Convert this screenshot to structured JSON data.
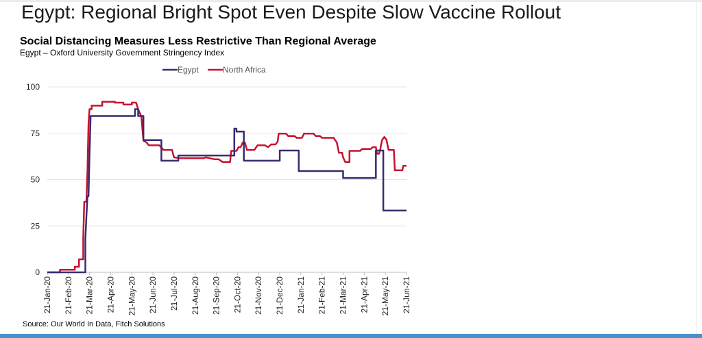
{
  "page": {
    "title": "Egypt: Regional Bright Spot Even Despite Slow Vaccine Rollout"
  },
  "chart_data": {
    "type": "line",
    "title": "Social Distancing Measures Less Restrictive Than Regional Average",
    "subtitle": "Egypt – Oxford University Government Stringency Index",
    "source": "Source: Our World In Data, Fitch Solutions",
    "xlabel": "",
    "ylabel": "",
    "ylim": [
      0,
      100
    ],
    "yticks": [
      0,
      25,
      50,
      75,
      100
    ],
    "grid": true,
    "legend_position": "top-center",
    "x_range": [
      0,
      17
    ],
    "x_ticks": [
      {
        "x": 0,
        "label": "21-Jan-20"
      },
      {
        "x": 1,
        "label": "21-Feb-20"
      },
      {
        "x": 2,
        "label": "21-Mar-20"
      },
      {
        "x": 3,
        "label": "21-Apr-20"
      },
      {
        "x": 4,
        "label": "21-May-20"
      },
      {
        "x": 5,
        "label": "21-Jun-20"
      },
      {
        "x": 6,
        "label": "21-Jul-20"
      },
      {
        "x": 7,
        "label": "21-Aug-20"
      },
      {
        "x": 8,
        "label": "21-Sep-20"
      },
      {
        "x": 9,
        "label": "21-Oct-20"
      },
      {
        "x": 10,
        "label": "21-Nov-20"
      },
      {
        "x": 11,
        "label": "21-Dec-20"
      },
      {
        "x": 12,
        "label": "21-Jan-21"
      },
      {
        "x": 13,
        "label": "21-Feb-21"
      },
      {
        "x": 14,
        "label": "21-Mar-21"
      },
      {
        "x": 15,
        "label": "21-Apr-21"
      },
      {
        "x": 16,
        "label": "21-May-21"
      },
      {
        "x": 17,
        "label": "21-Jun-21"
      }
    ],
    "series": [
      {
        "name": "Egypt",
        "color": "#3b2a6e",
        "points": [
          [
            0,
            0
          ],
          [
            1.8,
            0
          ],
          [
            1.8,
            18
          ],
          [
            1.85,
            30
          ],
          [
            1.9,
            41
          ],
          [
            1.95,
            41
          ],
          [
            2.0,
            64
          ],
          [
            2.05,
            84.3
          ],
          [
            4.15,
            84.3
          ],
          [
            4.15,
            88
          ],
          [
            4.3,
            88
          ],
          [
            4.3,
            84.3
          ],
          [
            4.55,
            84.3
          ],
          [
            4.55,
            71.3
          ],
          [
            5.4,
            71.3
          ],
          [
            5.4,
            60.2
          ],
          [
            6.2,
            60.2
          ],
          [
            6.2,
            63
          ],
          [
            8.85,
            63
          ],
          [
            8.85,
            77.5
          ],
          [
            8.95,
            77.5
          ],
          [
            8.95,
            75.9
          ],
          [
            9.3,
            75.9
          ],
          [
            9.3,
            60.2
          ],
          [
            11.0,
            60.2
          ],
          [
            11.0,
            65.7
          ],
          [
            11.9,
            65.7
          ],
          [
            11.9,
            54.6
          ],
          [
            14.0,
            54.6
          ],
          [
            14.0,
            50.9
          ],
          [
            15.55,
            50.9
          ],
          [
            15.55,
            65.7
          ],
          [
            15.9,
            65.7
          ],
          [
            15.9,
            33.3
          ],
          [
            17.0,
            33.3
          ]
        ]
      },
      {
        "name": "North Africa",
        "color": "#c8102e",
        "points": [
          [
            0,
            0
          ],
          [
            0.6,
            0
          ],
          [
            0.6,
            1.4
          ],
          [
            1.3,
            1.4
          ],
          [
            1.3,
            3
          ],
          [
            1.5,
            3
          ],
          [
            1.5,
            7
          ],
          [
            1.7,
            7
          ],
          [
            1.7,
            18
          ],
          [
            1.75,
            38
          ],
          [
            1.85,
            38
          ],
          [
            1.9,
            55
          ],
          [
            1.95,
            80
          ],
          [
            2.0,
            88
          ],
          [
            2.1,
            88
          ],
          [
            2.1,
            89.9
          ],
          [
            2.6,
            89.9
          ],
          [
            2.6,
            92
          ],
          [
            3.2,
            92
          ],
          [
            3.2,
            91.5
          ],
          [
            3.6,
            91.5
          ],
          [
            3.6,
            90.5
          ],
          [
            4.0,
            90.5
          ],
          [
            4.0,
            91.5
          ],
          [
            4.2,
            91.5
          ],
          [
            4.3,
            88
          ],
          [
            4.45,
            84
          ],
          [
            4.55,
            71
          ],
          [
            4.7,
            70
          ],
          [
            4.8,
            68.5
          ],
          [
            5.3,
            68.5
          ],
          [
            5.5,
            66
          ],
          [
            5.9,
            66
          ],
          [
            6.0,
            62
          ],
          [
            6.3,
            61.5
          ],
          [
            7.4,
            61.5
          ],
          [
            7.5,
            62
          ],
          [
            7.9,
            61
          ],
          [
            8.1,
            61
          ],
          [
            8.3,
            59.5
          ],
          [
            8.65,
            59.5
          ],
          [
            8.7,
            65.5
          ],
          [
            8.95,
            65.5
          ],
          [
            9.05,
            67.5
          ],
          [
            9.15,
            67.5
          ],
          [
            9.25,
            70
          ],
          [
            9.35,
            70
          ],
          [
            9.45,
            66
          ],
          [
            9.8,
            66
          ],
          [
            9.95,
            68.5
          ],
          [
            10.3,
            68.5
          ],
          [
            10.45,
            67.5
          ],
          [
            10.6,
            69
          ],
          [
            10.8,
            69
          ],
          [
            10.9,
            70.5
          ],
          [
            10.95,
            74.8
          ],
          [
            11.3,
            74.8
          ],
          [
            11.4,
            73.5
          ],
          [
            11.7,
            73.5
          ],
          [
            11.8,
            72.5
          ],
          [
            12.05,
            72.5
          ],
          [
            12.15,
            74.8
          ],
          [
            12.6,
            74.8
          ],
          [
            12.7,
            73.5
          ],
          [
            12.9,
            73.5
          ],
          [
            13.0,
            72.5
          ],
          [
            13.55,
            72.5
          ],
          [
            13.7,
            70
          ],
          [
            13.8,
            64.5
          ],
          [
            13.95,
            64.5
          ],
          [
            14.0,
            62
          ],
          [
            14.1,
            59.5
          ],
          [
            14.3,
            59.5
          ],
          [
            14.3,
            65.5
          ],
          [
            14.8,
            65.5
          ],
          [
            14.9,
            66.5
          ],
          [
            15.3,
            66.5
          ],
          [
            15.4,
            67.5
          ],
          [
            15.55,
            67.5
          ],
          [
            15.6,
            64
          ],
          [
            15.7,
            64
          ],
          [
            15.75,
            66
          ],
          [
            15.8,
            69
          ],
          [
            15.85,
            71.5
          ],
          [
            15.95,
            73
          ],
          [
            16.05,
            71.5
          ],
          [
            16.15,
            66
          ],
          [
            16.4,
            66
          ],
          [
            16.45,
            55
          ],
          [
            16.8,
            55
          ],
          [
            16.85,
            57.5
          ],
          [
            17.0,
            57.5
          ]
        ]
      }
    ]
  }
}
